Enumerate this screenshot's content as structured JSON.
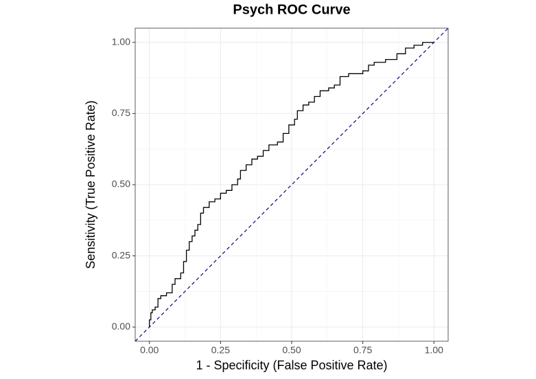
{
  "chart_data": {
    "type": "line",
    "title": "Psych ROC Curve",
    "x_label": "1 - Specificity (False Positive Rate)",
    "y_label": "Sensitivity (True Positive Rate)",
    "xlim": [
      -0.05,
      1.05
    ],
    "ylim": [
      -0.05,
      1.05
    ],
    "xticks": [
      {
        "value": 0,
        "label": "0.00"
      },
      {
        "value": 0.25,
        "label": "0.25"
      },
      {
        "value": 0.5,
        "label": "0.50"
      },
      {
        "value": 0.75,
        "label": "0.75"
      },
      {
        "value": 1,
        "label": "1.00"
      }
    ],
    "yticks": [
      {
        "value": 0,
        "label": "0.00"
      },
      {
        "value": 0.25,
        "label": "0.25"
      },
      {
        "value": 0.5,
        "label": "0.50"
      },
      {
        "value": 0.75,
        "label": "0.75"
      },
      {
        "value": 1,
        "label": "1.00"
      }
    ],
    "minor_grid": [
      0.125,
      0.375,
      0.625,
      0.875
    ],
    "grid": true,
    "drawstyle": "steps",
    "x": [
      0,
      0,
      0.005,
      0.01,
      0.02,
      0.03,
      0.04,
      0.06,
      0.08,
      0.09,
      0.11,
      0.12,
      0.13,
      0.14,
      0.15,
      0.16,
      0.17,
      0.18,
      0.19,
      0.21,
      0.23,
      0.25,
      0.27,
      0.29,
      0.31,
      0.32,
      0.34,
      0.36,
      0.38,
      0.4,
      0.42,
      0.45,
      0.47,
      0.49,
      0.51,
      0.52,
      0.54,
      0.56,
      0.58,
      0.6,
      0.63,
      0.65,
      0.67,
      0.7,
      0.75,
      0.77,
      0.79,
      0.83,
      0.87,
      0.9,
      0.93,
      0.96,
      1.0
    ],
    "series": [
      {
        "color": "#000000",
        "values": [
          0,
          0.025,
          0.05,
          0.06,
          0.07,
          0.1,
          0.11,
          0.12,
          0.15,
          0.17,
          0.19,
          0.23,
          0.27,
          0.3,
          0.32,
          0.34,
          0.36,
          0.4,
          0.42,
          0.44,
          0.45,
          0.47,
          0.48,
          0.5,
          0.52,
          0.55,
          0.57,
          0.59,
          0.6,
          0.62,
          0.64,
          0.65,
          0.68,
          0.71,
          0.73,
          0.76,
          0.78,
          0.79,
          0.81,
          0.83,
          0.84,
          0.85,
          0.88,
          0.89,
          0.9,
          0.92,
          0.93,
          0.94,
          0.96,
          0.98,
          0.99,
          1.0,
          1.0
        ]
      }
    ],
    "reference_line": {
      "slope": 1,
      "intercept": 0,
      "color": "#00008b",
      "dashed": true
    }
  }
}
